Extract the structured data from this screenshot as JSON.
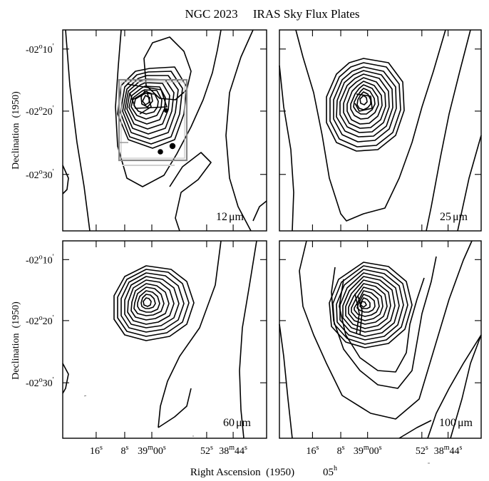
{
  "figure": {
    "title": "NGC 2023     IRAS Sky Flux Plates",
    "y_axis_label": "Declination  (1950)",
    "x_axis_label": "Right Ascension  (1950)",
    "x_axis_hour": "05",
    "x_axis_hour_unit": "h",
    "dec_ticks": [
      {
        "deg": "-02",
        "min": "10"
      },
      {
        "deg": "-02",
        "min": "20"
      },
      {
        "deg": "-02",
        "min": "30"
      }
    ],
    "ra_ticks": [
      {
        "main": "16",
        "sup": "s",
        "tail": ""
      },
      {
        "main": "8",
        "sup": "s",
        "tail": ""
      },
      {
        "main": "39",
        "sup": "m",
        "tail": "00",
        "sup2": "s"
      },
      {
        "main": "52",
        "sup": "s",
        "tail": ""
      },
      {
        "main": "38",
        "sup": "m",
        "tail": "44",
        "sup2": "s"
      }
    ],
    "panels": [
      {
        "band": "12",
        "unit": "μm"
      },
      {
        "band": "25",
        "unit": "μm"
      },
      {
        "band": "60",
        "unit": "μm"
      },
      {
        "band": "100",
        "unit": "μm"
      }
    ]
  }
}
